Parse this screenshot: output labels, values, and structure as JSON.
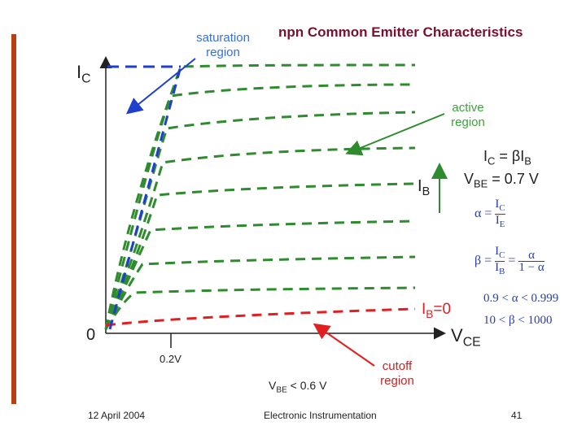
{
  "title": "npn Common Emitter Characteristics",
  "labels": {
    "saturation": [
      "saturation",
      "region"
    ],
    "active": [
      "active",
      "region"
    ],
    "cutoff": [
      "cutoff",
      "region"
    ],
    "ic_axis": "I",
    "ic_sub": "C",
    "vce_axis": "V",
    "vce_sub": "CE",
    "origin": "0",
    "tick_02v": "0.2V",
    "ib_arrow": "I",
    "ib_arrow_sub": "B",
    "ib_zero": "I",
    "ib_zero_sub": "B",
    "ib_zero_val": "=0",
    "vbe_cut": "V",
    "vbe_cut_sub": "BE",
    "vbe_cut_val": " < 0.6 V"
  },
  "equations": {
    "ic_lhs": "I",
    "ic_lhs_sub": "C",
    "ic_rhs": " = βI",
    "ic_rhs_sub": "B",
    "vbe_lhs": "V",
    "vbe_lhs_sub": "BE",
    "vbe_rhs": " = 0.7 V",
    "alpha_lhs": "α =",
    "alpha_num": "I",
    "alpha_num_sub": "C",
    "alpha_den": "I",
    "alpha_den_sub": "E",
    "beta_lhs": "β =",
    "beta_num": "I",
    "beta_num_sub": "C",
    "beta_den": "I",
    "beta_den_sub": "B",
    "beta_eq": "=",
    "beta_num2": "α",
    "beta_den2": "1 − α",
    "alpha_range": "0.9 < α < 0.999",
    "beta_range": "10 < β < 1000"
  },
  "footer": {
    "date": "12 April 2004",
    "course": "Electronic Instrumentation",
    "page": "41"
  },
  "colors": {
    "green": "#2e8b2e",
    "blue": "#1f3fcf",
    "red": "#e02020",
    "title": "#7a0f2e",
    "accent_bar": "#b8400f"
  }
}
